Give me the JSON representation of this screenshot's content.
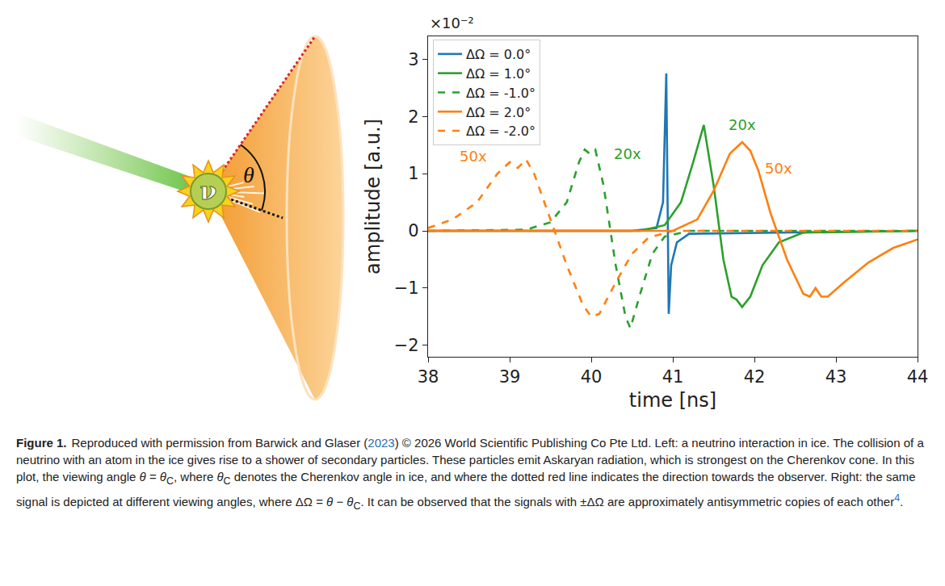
{
  "diagram": {
    "particle_label": "ν",
    "angle_label": "θ"
  },
  "chart_data": {
    "type": "line",
    "xlabel": "time [ns]",
    "ylabel": "amplitude [a.u.]",
    "y_scale_label": "×10⁻²",
    "xlim": [
      38,
      44
    ],
    "xticks": [
      38,
      39,
      40,
      41,
      42,
      43,
      44
    ],
    "ylim": [
      -2.2,
      3.4
    ],
    "yticks": [
      -2,
      -1,
      0,
      1,
      2,
      3
    ],
    "grid": false,
    "legend": "upper left",
    "series": [
      {
        "name": "ΔΩ = 0.0°",
        "color": "#1f77b4",
        "line_style": "solid",
        "x": [
          38,
          40.5,
          40.8,
          40.88,
          40.92,
          40.935,
          40.95,
          40.98,
          41.05,
          41.2,
          44
        ],
        "values": [
          0,
          0,
          0.05,
          0.5,
          2.75,
          0.5,
          -1.45,
          -0.6,
          -0.2,
          -0.05,
          0
        ]
      },
      {
        "name": "ΔΩ = 1.0°",
        "color": "#2ca02c",
        "line_style": "solid",
        "x": [
          38,
          40.6,
          40.9,
          41.1,
          41.25,
          41.38,
          41.5,
          41.62,
          41.72,
          41.78,
          41.85,
          41.95,
          42.1,
          42.3,
          42.6,
          44
        ],
        "values": [
          0,
          0,
          0.1,
          0.5,
          1.2,
          1.85,
          0.8,
          -0.5,
          -1.15,
          -1.2,
          -1.33,
          -1.15,
          -0.6,
          -0.2,
          -0.03,
          0
        ]
      },
      {
        "name": "ΔΩ = -1.0°",
        "color": "#2ca02c",
        "line_style": "dash",
        "x": [
          38,
          39.2,
          39.5,
          39.7,
          39.85,
          39.92,
          39.98,
          40.05,
          40.15,
          40.3,
          40.42,
          40.48,
          40.6,
          40.75,
          40.9,
          41.2,
          44
        ],
        "values": [
          0,
          0.02,
          0.15,
          0.5,
          1.2,
          1.42,
          1.35,
          1.42,
          0.8,
          -0.6,
          -1.5,
          -1.7,
          -1.1,
          -0.4,
          -0.1,
          0,
          0
        ]
      },
      {
        "name": "ΔΩ = 2.0°",
        "color": "#ff7f0e",
        "line_style": "solid",
        "x": [
          38,
          41.0,
          41.3,
          41.5,
          41.7,
          41.85,
          41.95,
          42.05,
          42.2,
          42.4,
          42.6,
          42.68,
          42.75,
          42.82,
          42.9,
          43.1,
          43.4,
          43.7,
          44
        ],
        "values": [
          0,
          0,
          0.2,
          0.7,
          1.35,
          1.55,
          1.4,
          1.05,
          0.3,
          -0.5,
          -1.1,
          -1.15,
          -1.0,
          -1.15,
          -1.15,
          -0.9,
          -0.55,
          -0.3,
          -0.15
        ]
      },
      {
        "name": "ΔΩ = -2.0°",
        "color": "#ff7f0e",
        "line_style": "dash",
        "x": [
          38,
          38.3,
          38.6,
          38.85,
          39.0,
          39.1,
          39.2,
          39.3,
          39.5,
          39.7,
          39.9,
          40.0,
          40.1,
          40.3,
          40.5,
          40.7,
          41.0,
          44
        ],
        "values": [
          0.05,
          0.2,
          0.5,
          1.0,
          1.2,
          1.1,
          1.25,
          1.0,
          0.2,
          -0.6,
          -1.3,
          -1.5,
          -1.45,
          -0.9,
          -0.4,
          -0.12,
          0,
          0
        ]
      }
    ],
    "annotations": [
      {
        "text": "50x",
        "x": 38.55,
        "y": 1.3,
        "color": "#ff7f0e"
      },
      {
        "text": "20x",
        "x": 40.45,
        "y": 1.35,
        "color": "#2ca02c"
      },
      {
        "text": "20x",
        "x": 41.85,
        "y": 1.85,
        "color": "#2ca02c"
      },
      {
        "text": "50x",
        "x": 42.3,
        "y": 1.1,
        "color": "#ff7f0e"
      }
    ]
  },
  "caption": {
    "label": "Figure 1.",
    "parts": [
      {
        "text": "Reproduced with permission from Barwick and Glaser ("
      },
      {
        "text": "2023",
        "link": true
      },
      {
        "text": ") © 2026 World Scientific Publishing Co Pte Ltd. Left: a neutrino interaction in ice. The collision of a neutrino with an atom in the ice gives rise to a shower of secondary particles. These particles emit Askaryan radiation, which is strongest on the Cherenkov cone. In this plot, the viewing angle "
      },
      {
        "text": "θ",
        "italic": true
      },
      {
        "text": " = "
      },
      {
        "text": "θ",
        "italic": true
      },
      {
        "text": "C",
        "sub": true
      },
      {
        "text": ", where "
      },
      {
        "text": "θ",
        "italic": true
      },
      {
        "text": "C",
        "sub": true
      },
      {
        "text": " denotes the Cherenkov angle in ice, and where the dotted red line indicates the direction towards the observer. Right: the same signal is depicted at different viewing angles, where ΔΩ = "
      },
      {
        "text": "θ",
        "italic": true
      },
      {
        "text": " − "
      },
      {
        "text": "θ",
        "italic": true
      },
      {
        "text": "C",
        "sub": true
      },
      {
        "text": ". It can be observed that the signals with ±ΔΩ are approximately antisymmetric copies of each other"
      },
      {
        "text": "4",
        "sup": true,
        "link": true
      },
      {
        "text": "."
      }
    ]
  }
}
